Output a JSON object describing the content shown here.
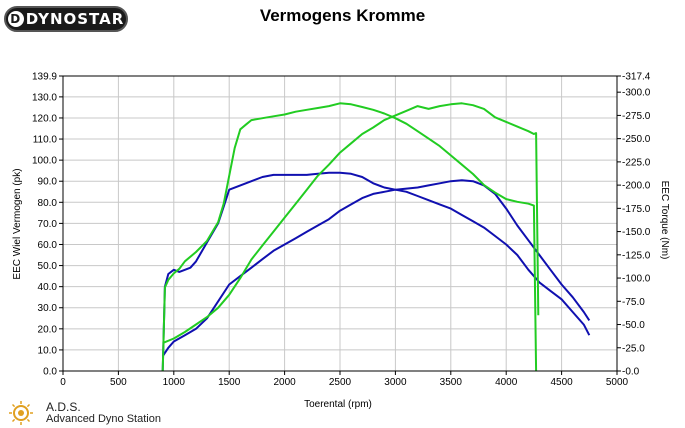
{
  "brand": {
    "logo_text": "DYNOSTAR"
  },
  "footer": {
    "abbr": "A.D.S.",
    "name": "Advanced Dyno Station"
  },
  "colors": {
    "power": "#1010b0",
    "torque": "#22cc22",
    "grid": "#c8c8c8"
  },
  "chart_data": {
    "type": "line",
    "title": "Vermogens Kromme",
    "xlabel": "Toerental (rpm)",
    "ylabel": "EEC Wiel Vermogen (pk)",
    "y2label": "EEC Torque (Nm)",
    "xlim": [
      0,
      5000
    ],
    "ylim": [
      0,
      139.9
    ],
    "y2lim": [
      0,
      317.4
    ],
    "grid": true,
    "x_ticks": [
      "0",
      "500",
      "1000",
      "1500",
      "2000",
      "2500",
      "3000",
      "3500",
      "4000",
      "4500",
      "5000"
    ],
    "y_ticks": [
      "0.0",
      "10.0",
      "20.0",
      "30.0",
      "40.0",
      "50.0",
      "60.0",
      "70.0",
      "80.0",
      "90.0",
      "100.0",
      "110.0",
      "120.0",
      "130.0",
      "139.9"
    ],
    "y2_ticks": [
      "-0.0",
      "-25.0",
      "-50.0",
      "-75.0",
      "-100.0",
      "-125.0",
      "-150.0",
      "-175.0",
      "-200.0",
      "-225.0",
      "-250.0",
      "-275.0",
      "-300.0",
      "-317.4"
    ],
    "series": [
      {
        "axis": "left",
        "color": "power",
        "x": [
          900,
          950,
          1000,
          1100,
          1200,
          1300,
          1400,
          1500,
          1600,
          1700,
          1800,
          1900,
          2000,
          2100,
          2200,
          2300,
          2400,
          2500,
          2600,
          2700,
          2800,
          2900,
          3000,
          3100,
          3200,
          3300,
          3400,
          3500,
          3600,
          3700,
          3800,
          3900,
          4000,
          4100,
          4200,
          4300,
          4400,
          4500,
          4600,
          4700,
          4750
        ],
        "y": [
          7,
          11,
          14,
          17,
          20,
          25,
          33,
          41,
          45,
          49,
          53,
          57,
          60,
          63,
          66,
          69,
          72,
          76,
          79,
          82,
          84,
          85,
          86,
          86.5,
          87,
          88,
          89,
          90,
          90.5,
          90,
          88,
          84,
          77,
          69,
          62,
          55,
          48,
          41,
          35,
          28,
          24
        ]
      },
      {
        "axis": "left",
        "color": "power",
        "x": [
          900,
          920,
          950,
          1000,
          1050,
          1100,
          1150,
          1200,
          1300,
          1400,
          1450,
          1500,
          1600,
          1700,
          1800,
          1900,
          2000,
          2100,
          2200,
          2300,
          2400,
          2500,
          2600,
          2700,
          2800,
          2900,
          3000,
          3100,
          3200,
          3300,
          3400,
          3500,
          3600,
          3700,
          3800,
          3900,
          4000,
          4100,
          4200,
          4300,
          4400,
          4500,
          4600,
          4700,
          4750
        ],
        "y": [
          0,
          40,
          46,
          48,
          47,
          48,
          49,
          52,
          61,
          70,
          78,
          86,
          88,
          90,
          92,
          93,
          93,
          93,
          93,
          93.5,
          94,
          94,
          93.5,
          92,
          89,
          87,
          86,
          85,
          83,
          81,
          79,
          77,
          74,
          71,
          68,
          64,
          60,
          55,
          48,
          42,
          38,
          34,
          28,
          22,
          17
        ]
      },
      {
        "axis": "right",
        "color": "torque",
        "x": [
          900,
          920,
          950,
          1000,
          1050,
          1100,
          1200,
          1300,
          1400,
          1450,
          1500,
          1550,
          1600,
          1650,
          1700,
          1800,
          1900,
          2000,
          2100,
          2200,
          2300,
          2400,
          2500,
          2600,
          2700,
          2800,
          2900,
          3000,
          3100,
          3200,
          3300,
          3400,
          3500,
          3600,
          3700,
          3800,
          3900,
          4000,
          4100,
          4200,
          4250,
          4270
        ],
        "y": [
          0,
          90,
          98,
          105,
          110,
          118,
          128,
          140,
          160,
          180,
          210,
          240,
          260,
          265,
          270,
          272,
          274,
          276,
          279,
          281,
          283,
          285,
          288,
          287,
          284,
          281,
          277,
          272,
          266,
          258,
          250,
          242,
          232,
          222,
          212,
          200,
          192,
          185,
          182,
          180,
          178,
          0
        ]
      },
      {
        "axis": "right",
        "color": "torque",
        "x": [
          900,
          1000,
          1100,
          1200,
          1300,
          1400,
          1500,
          1600,
          1700,
          1800,
          1900,
          2000,
          2100,
          2200,
          2300,
          2400,
          2500,
          2600,
          2700,
          2800,
          2900,
          3000,
          3100,
          3200,
          3300,
          3400,
          3500,
          3600,
          3700,
          3800,
          3900,
          4000,
          4100,
          4200,
          4250,
          4270,
          4290
        ],
        "y": [
          30,
          35,
          42,
          50,
          58,
          68,
          82,
          100,
          120,
          135,
          150,
          165,
          180,
          195,
          210,
          222,
          235,
          245,
          255,
          262,
          270,
          275,
          280,
          285,
          282,
          285,
          287,
          288,
          286,
          282,
          273,
          268,
          263,
          258,
          255,
          256,
          60
        ]
      }
    ]
  }
}
